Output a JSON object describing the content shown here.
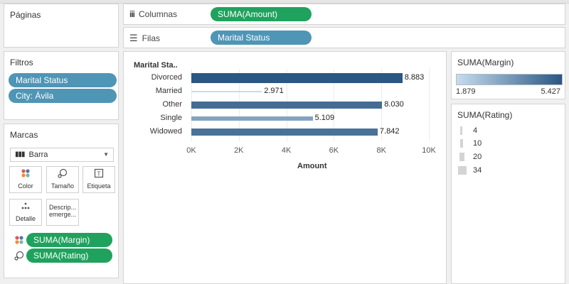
{
  "pages_panel": {
    "title": "Páginas"
  },
  "columns_shelf": {
    "label": "Columnas",
    "pill": "SUMA(Amount)"
  },
  "rows_shelf": {
    "label": "Filas",
    "pill": "Marital Status"
  },
  "filters_panel": {
    "title": "Filtros",
    "pills": [
      "Marital Status",
      "City: Ávila"
    ]
  },
  "marks_panel": {
    "title": "Marcas",
    "mark_type": "Barra",
    "buttons": {
      "color": "Color",
      "size": "Tamaño",
      "label": "Etiqueta",
      "detail": "Detalle",
      "tooltip_line1": "Descrip...",
      "tooltip_line2": "emerge..."
    },
    "fields": [
      "SUMA(Margin)",
      "SUMA(Rating)"
    ]
  },
  "chart_data": {
    "type": "bar",
    "orientation": "horizontal",
    "row_header": "Marital Sta..",
    "categories": [
      "Divorced",
      "Married",
      "Other",
      "Single",
      "Widowed"
    ],
    "values": [
      8883,
      2971,
      8030,
      5109,
      7842
    ],
    "value_labels": [
      "8.883",
      "2.971",
      "8.030",
      "5.109",
      "7.842"
    ],
    "margin_values": [
      5.427,
      1.879,
      4.85,
      3.4,
      4.7
    ],
    "rating_values": [
      34,
      4,
      26,
      14,
      26
    ],
    "xlabel": "Amount",
    "xlim": [
      0,
      10000
    ],
    "xticks": [
      0,
      2000,
      4000,
      6000,
      8000,
      10000
    ],
    "xtick_labels": [
      "0K",
      "2K",
      "4K",
      "6K",
      "8K",
      "10K"
    ],
    "grid": true
  },
  "color_legend": {
    "title": "SUMA(Margin)",
    "min_label": "1.879",
    "max_label": "5.427",
    "min_color": "#c5dcef",
    "max_color": "#2a5783"
  },
  "size_legend": {
    "title": "SUMA(Rating)",
    "items": [
      "4",
      "10",
      "20",
      "34"
    ]
  }
}
